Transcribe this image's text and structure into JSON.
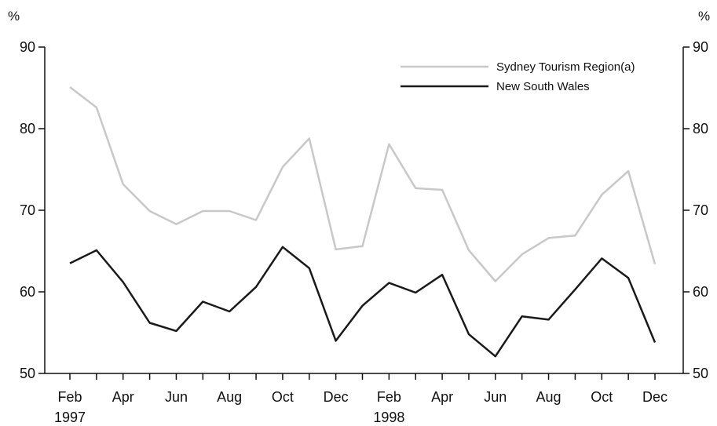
{
  "chart_data": {
    "type": "line",
    "title": "",
    "xlabel": "",
    "ylabel": "%",
    "y_unit_left": "%",
    "y_unit_right": "%",
    "ylim": [
      50,
      90
    ],
    "yticks": [
      50,
      60,
      70,
      80,
      90
    ],
    "grid": false,
    "legend_position": "top-right",
    "x": [
      "1997-02",
      "1997-03",
      "1997-04",
      "1997-05",
      "1997-06",
      "1997-07",
      "1997-08",
      "1997-09",
      "1997-10",
      "1997-11",
      "1997-12",
      "1998-01",
      "1998-02",
      "1998-03",
      "1998-04",
      "1998-05",
      "1998-06",
      "1998-07",
      "1998-08",
      "1998-09",
      "1998-10",
      "1998-11",
      "1998-12"
    ],
    "x_tick_labels": [
      "Feb",
      "Apr",
      "Jun",
      "Aug",
      "Oct",
      "Dec",
      "Feb",
      "Apr",
      "Jun",
      "Aug",
      "Oct",
      "Dec"
    ],
    "year_labels": [
      "1997",
      "1998"
    ],
    "series": [
      {
        "name": "Sydney Tourism Region(a)",
        "color": "#c8c8c8",
        "values": [
          85.1,
          82.6,
          73.2,
          69.9,
          68.3,
          69.9,
          69.9,
          68.8,
          75.3,
          78.8,
          65.2,
          65.6,
          78.1,
          72.7,
          72.5,
          65.1,
          61.3,
          64.6,
          66.6,
          66.9,
          71.9,
          74.8,
          63.4
        ]
      },
      {
        "name": "New South Wales",
        "color": "#1a1a1a",
        "values": [
          63.5,
          65.1,
          61.2,
          56.2,
          55.2,
          58.8,
          57.6,
          60.6,
          65.5,
          62.9,
          54.0,
          58.3,
          61.1,
          59.9,
          62.1,
          54.8,
          52.1,
          57.0,
          56.6,
          60.3,
          64.1,
          61.7,
          53.8
        ]
      }
    ]
  }
}
